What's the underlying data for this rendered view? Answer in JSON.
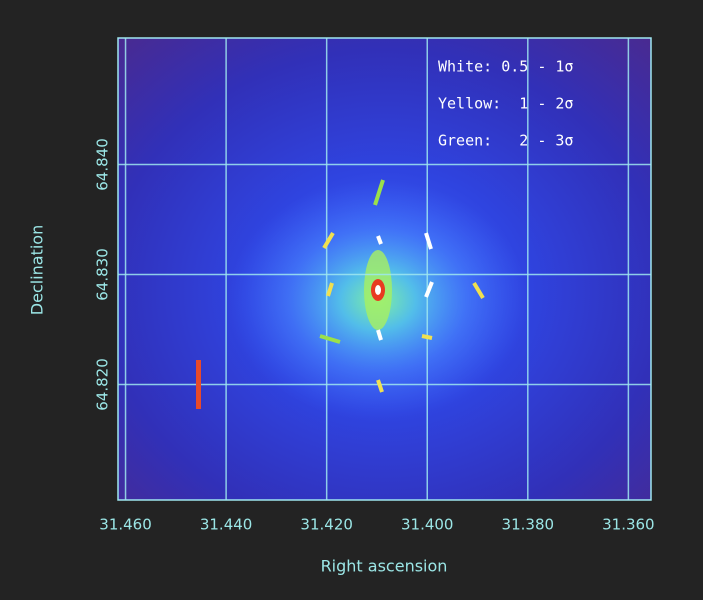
{
  "chart_data": {
    "type": "image",
    "x_label": "Right ascension",
    "y_label": "Declination",
    "xlim": [
      31.4615,
      31.3555
    ],
    "ylim": [
      64.8095,
      64.8515
    ],
    "xticks": [
      {
        "value": 31.46,
        "label": "31.460"
      },
      {
        "value": 31.44,
        "label": "31.440"
      },
      {
        "value": 31.42,
        "label": "31.420"
      },
      {
        "value": 31.4,
        "label": "31.400"
      },
      {
        "value": 31.38,
        "label": "31.380"
      },
      {
        "value": 31.36,
        "label": "31.360"
      }
    ],
    "yticks": [
      {
        "value": 64.82,
        "label": "64.820"
      },
      {
        "value": 64.83,
        "label": "64.830"
      },
      {
        "value": 64.84,
        "label": "64.840"
      }
    ],
    "grid": true,
    "annotations": [
      "White: 0.5 - 1σ",
      "Yellow:  1 - 2σ",
      "Green:   2 - 3σ"
    ]
  }
}
